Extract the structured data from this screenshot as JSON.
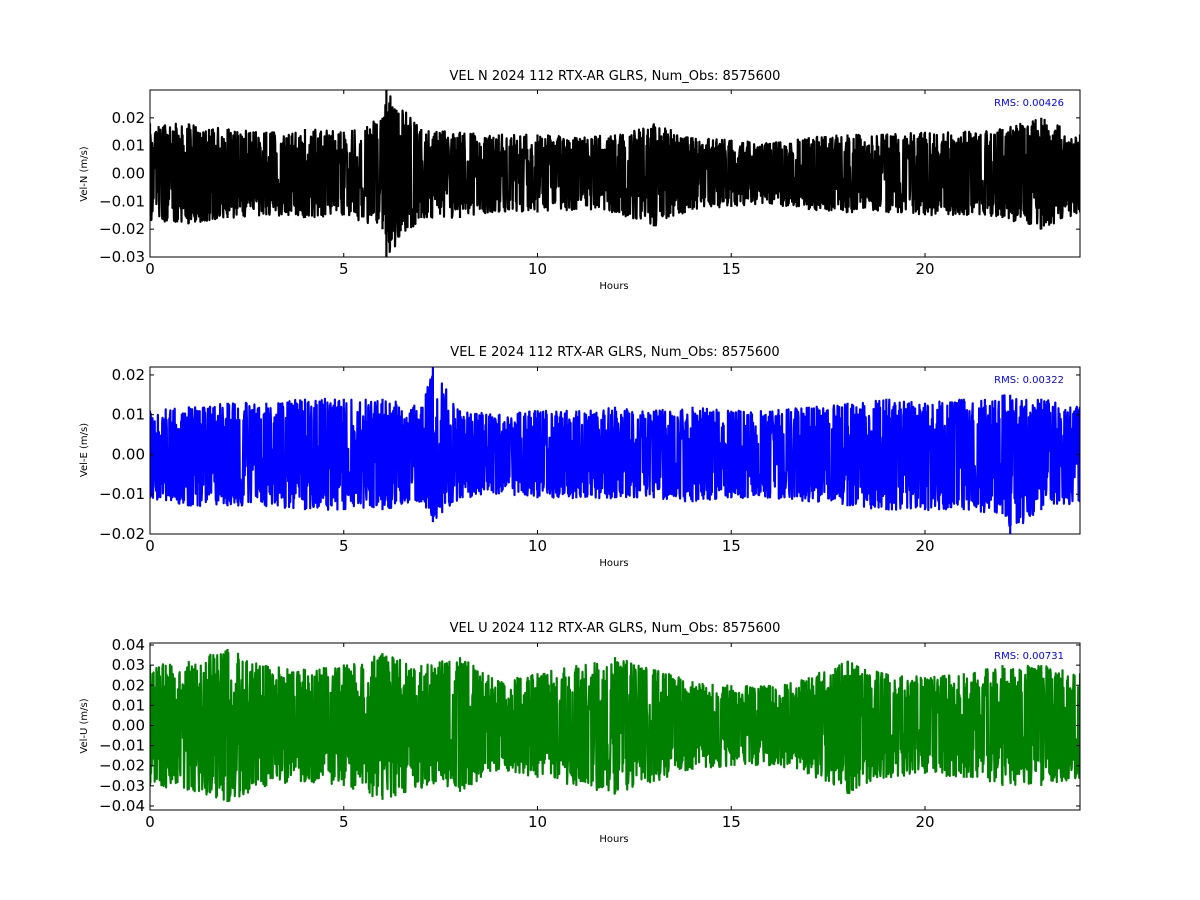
{
  "chart_data": [
    {
      "type": "line",
      "title": "VEL N 2024 112 RTX-AR  GLRS, Num_Obs: 8575600",
      "xlabel": "Hours",
      "ylabel": "Vel-N (m/s)",
      "xlim": [
        0,
        24
      ],
      "ylim": [
        -0.03,
        0.03
      ],
      "xticks": [
        0,
        5,
        10,
        15,
        20
      ],
      "xtick_labels": [
        "0",
        "5",
        "10",
        "15",
        "20"
      ],
      "yticks": [
        -0.03,
        -0.02,
        -0.01,
        0.0,
        0.01,
        0.02
      ],
      "ytick_labels": [
        "−0.03",
        "−0.02",
        "−0.01",
        "0.00",
        "0.01",
        "0.02"
      ],
      "annotation": "RMS:  0.00426",
      "color": "#000000",
      "annotation_color": "#0000ff",
      "grid": false,
      "envelope": {
        "x": [
          0,
          1,
          2,
          3,
          4,
          5,
          6,
          6.1,
          7,
          8,
          9,
          10,
          11,
          12,
          13,
          14,
          15,
          16,
          17,
          18,
          19,
          20,
          21,
          22,
          23,
          24
        ],
        "upper": [
          0.018,
          0.018,
          0.016,
          0.015,
          0.016,
          0.015,
          0.02,
          0.03,
          0.016,
          0.015,
          0.014,
          0.014,
          0.013,
          0.014,
          0.018,
          0.013,
          0.012,
          0.011,
          0.013,
          0.014,
          0.014,
          0.015,
          0.015,
          0.016,
          0.02,
          0.014
        ],
        "lower": [
          -0.017,
          -0.018,
          -0.016,
          -0.015,
          -0.016,
          -0.015,
          -0.02,
          -0.03,
          -0.016,
          -0.016,
          -0.014,
          -0.014,
          -0.013,
          -0.014,
          -0.019,
          -0.013,
          -0.012,
          -0.011,
          -0.013,
          -0.014,
          -0.014,
          -0.015,
          -0.015,
          -0.016,
          -0.02,
          -0.014
        ]
      }
    },
    {
      "type": "line",
      "title": "VEL E 2024 112 RTX-AR  GLRS, Num_Obs: 8575600",
      "xlabel": "Hours",
      "ylabel": "Vel-E (m/s)",
      "xlim": [
        0,
        24
      ],
      "ylim": [
        -0.02,
        0.022
      ],
      "xticks": [
        0,
        5,
        10,
        15,
        20
      ],
      "xtick_labels": [
        "0",
        "5",
        "10",
        "15",
        "20"
      ],
      "yticks": [
        -0.02,
        -0.01,
        0.0,
        0.01,
        0.02
      ],
      "ytick_labels": [
        "−0.02",
        "−0.01",
        "0.00",
        "0.01",
        "0.02"
      ],
      "annotation": "RMS:  0.00322",
      "color": "#0000ff",
      "annotation_color": "#0000ff",
      "grid": false,
      "envelope": {
        "x": [
          0,
          1,
          2,
          3,
          4,
          5,
          6,
          7,
          7.3,
          8,
          9,
          10,
          11,
          12,
          13,
          14,
          15,
          16,
          17,
          18,
          19,
          20,
          21,
          22,
          22.2,
          23,
          24
        ],
        "upper": [
          0.011,
          0.012,
          0.013,
          0.013,
          0.014,
          0.014,
          0.014,
          0.012,
          0.022,
          0.011,
          0.01,
          0.011,
          0.011,
          0.012,
          0.011,
          0.012,
          0.011,
          0.011,
          0.012,
          0.013,
          0.014,
          0.013,
          0.014,
          0.015,
          0.015,
          0.014,
          0.012
        ],
        "lower": [
          -0.011,
          -0.013,
          -0.013,
          -0.013,
          -0.014,
          -0.014,
          -0.014,
          -0.012,
          -0.017,
          -0.011,
          -0.01,
          -0.011,
          -0.011,
          -0.011,
          -0.011,
          -0.012,
          -0.011,
          -0.011,
          -0.012,
          -0.013,
          -0.014,
          -0.014,
          -0.014,
          -0.015,
          -0.02,
          -0.014,
          -0.012
        ]
      }
    },
    {
      "type": "line",
      "title": "VEL U 2024 112 RTX-AR  GLRS, Num_Obs: 8575600",
      "xlabel": "Hours",
      "ylabel": "Vel-U (m/s)",
      "xlim": [
        0,
        24
      ],
      "ylim": [
        -0.042,
        0.041
      ],
      "xticks": [
        0,
        5,
        10,
        15,
        20
      ],
      "xtick_labels": [
        "0",
        "5",
        "10",
        "15",
        "20"
      ],
      "yticks": [
        -0.04,
        -0.03,
        -0.02,
        -0.01,
        0.0,
        0.01,
        0.02,
        0.03,
        0.04
      ],
      "ytick_labels": [
        "−0.04",
        "−0.03",
        "−0.02",
        "−0.01",
        "0.00",
        "0.01",
        "0.02",
        "0.03",
        "0.04"
      ],
      "annotation": "RMS:  0.00731",
      "color": "#008000",
      "annotation_color": "#0000ff",
      "grid": false,
      "envelope": {
        "x": [
          0,
          1,
          2,
          3,
          4,
          5,
          6,
          7,
          8,
          9,
          10,
          11,
          12,
          13,
          14,
          15,
          16,
          17,
          18,
          19,
          20,
          21,
          22,
          23,
          24
        ],
        "upper": [
          0.03,
          0.032,
          0.038,
          0.03,
          0.028,
          0.03,
          0.036,
          0.03,
          0.034,
          0.022,
          0.026,
          0.03,
          0.034,
          0.028,
          0.022,
          0.02,
          0.02,
          0.024,
          0.032,
          0.026,
          0.024,
          0.026,
          0.03,
          0.03,
          0.026
        ],
        "lower": [
          -0.03,
          -0.032,
          -0.038,
          -0.03,
          -0.028,
          -0.03,
          -0.037,
          -0.031,
          -0.033,
          -0.022,
          -0.026,
          -0.03,
          -0.034,
          -0.028,
          -0.022,
          -0.02,
          -0.02,
          -0.024,
          -0.034,
          -0.026,
          -0.024,
          -0.026,
          -0.03,
          -0.03,
          -0.026
        ]
      }
    }
  ]
}
